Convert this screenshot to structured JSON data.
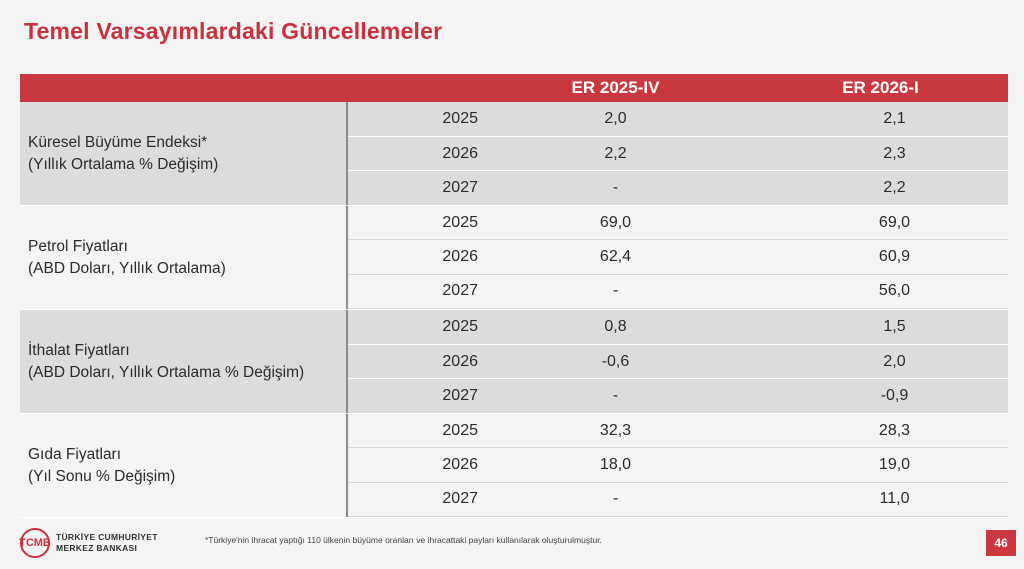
{
  "title": "Temel Varsayımlardaki Güncellemeler",
  "columns": {
    "v1": "ER 2025-IV",
    "v2": "ER 2026-I"
  },
  "groups": [
    {
      "label_line1": "Küresel Büyüme Endeksi*",
      "label_line2": "(Yıllık Ortalama % Değişim)",
      "shade": "shaded",
      "rows": [
        {
          "year": "2025",
          "v1": "2,0",
          "v2": "2,1"
        },
        {
          "year": "2026",
          "v1": "2,2",
          "v2": "2,3"
        },
        {
          "year": "2027",
          "v1": "-",
          "v2": "2,2"
        }
      ]
    },
    {
      "label_line1": "Petrol Fiyatları",
      "label_line2": "(ABD Doları, Yıllık Ortalama)",
      "shade": "plain",
      "rows": [
        {
          "year": "2025",
          "v1": "69,0",
          "v2": "69,0"
        },
        {
          "year": "2026",
          "v1": "62,4",
          "v2": "60,9"
        },
        {
          "year": "2027",
          "v1": "-",
          "v2": "56,0"
        }
      ]
    },
    {
      "label_line1": "İthalat Fiyatları",
      "label_line2": "(ABD Doları, Yıllık Ortalama % Değişim)",
      "shade": "shaded",
      "rows": [
        {
          "year": "2025",
          "v1": "0,8",
          "v2": "1,5"
        },
        {
          "year": "2026",
          "v1": "-0,6",
          "v2": "2,0"
        },
        {
          "year": "2027",
          "v1": "-",
          "v2": "-0,9"
        }
      ]
    },
    {
      "label_line1": "Gıda Fiyatları",
      "label_line2": "(Yıl Sonu % Değişim)",
      "shade": "plain",
      "rows": [
        {
          "year": "2025",
          "v1": "32,3",
          "v2": "28,3"
        },
        {
          "year": "2026",
          "v1": "18,0",
          "v2": "19,0"
        },
        {
          "year": "2027",
          "v1": "-",
          "v2": "11,0"
        }
      ]
    }
  ],
  "footer": {
    "logo_mark": "TCMB",
    "logo_line1": "TÜRKİYE CUMHURİYET",
    "logo_line2": "MERKEZ BANKASI",
    "note": "*Türkiye'nin ihracat yaptığı 110 ülkenin büyüme oranları ve ihracattaki payları kullanılarak oluşturulmuştur.",
    "page": "46"
  },
  "colors": {
    "accent": "#c9383f",
    "shaded_row": "#dcdcdc"
  }
}
